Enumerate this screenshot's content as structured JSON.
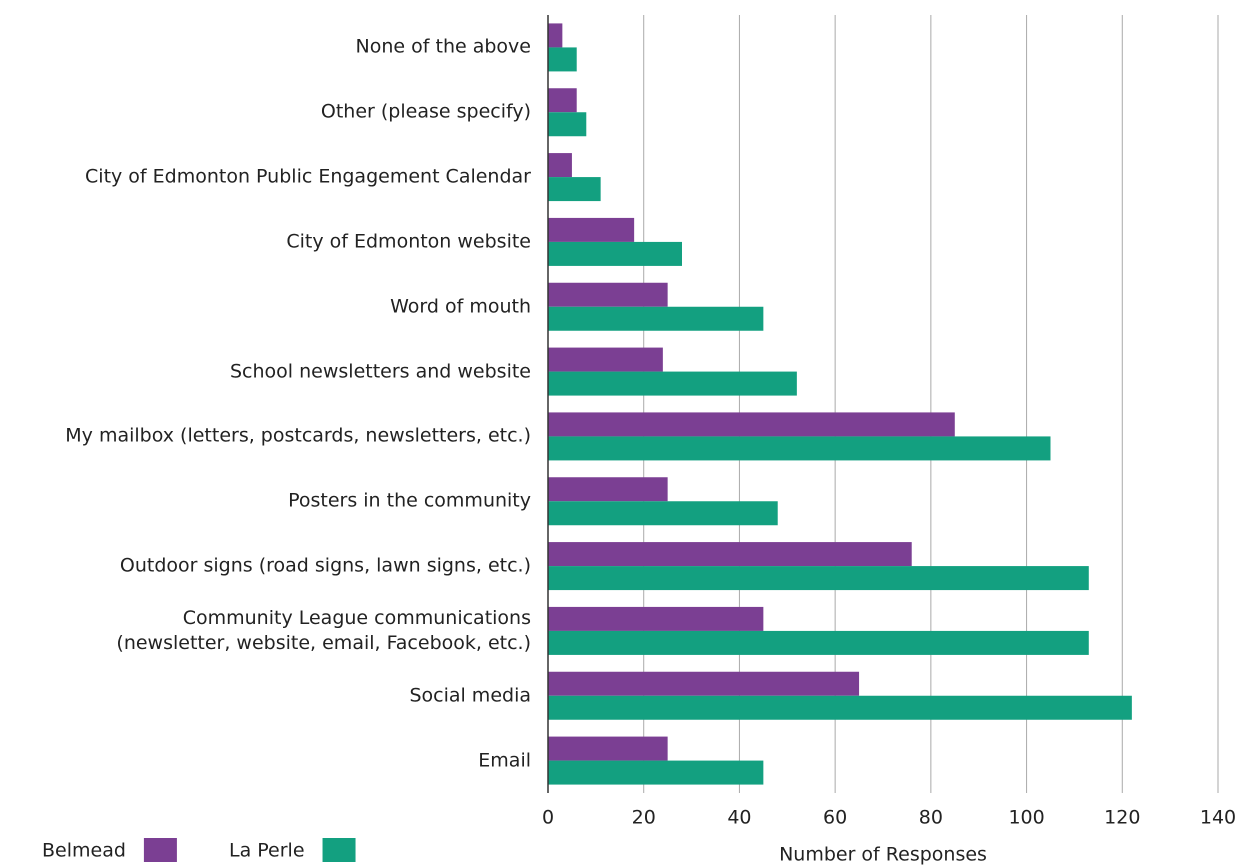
{
  "chart_data": {
    "type": "bar",
    "orientation": "horizontal",
    "x_label": "Number of Responses",
    "categories": [
      "None of the above",
      "Other (please specify)",
      "City of Edmonton Public Engagement Calendar",
      "City of Edmonton website",
      "Word of mouth",
      "School newsletters and website",
      "My mailbox (letters, postcards, newsletters, etc.)",
      "Posters in the community",
      "Outdoor signs (road signs, lawn signs, etc.)",
      "Community League communications\n(newsletter, website, email, Facebook, etc.)",
      "Social media",
      "Email"
    ],
    "series": [
      {
        "name": "Belmead",
        "color": "#7b3f93",
        "values": [
          3,
          6,
          5,
          18,
          25,
          24,
          85,
          25,
          76,
          45,
          65,
          25
        ]
      },
      {
        "name": "La Perle",
        "color": "#13a080",
        "values": [
          6,
          8,
          11,
          28,
          45,
          52,
          105,
          48,
          113,
          113,
          122,
          45
        ]
      }
    ],
    "xlim": [
      0,
      140
    ],
    "xticks": [
      0,
      20,
      40,
      60,
      80,
      100,
      120,
      140
    ],
    "grid": true,
    "legend": "bottom-left"
  }
}
